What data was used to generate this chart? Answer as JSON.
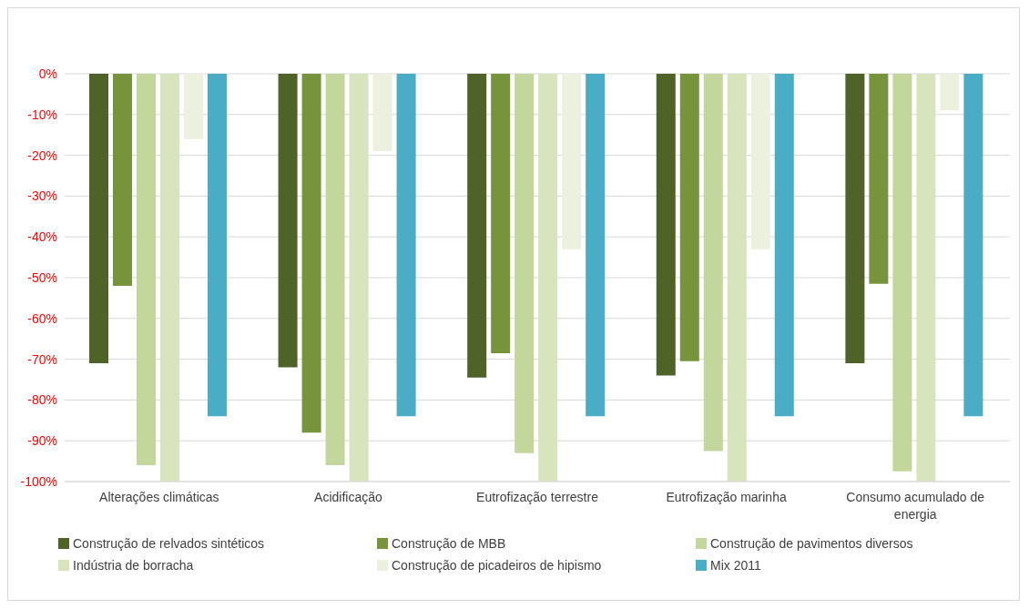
{
  "chart_data": {
    "type": "bar",
    "categories": [
      "Alterações climáticas",
      "Acidificação",
      "Eutrofização terrestre",
      "Eutrofização marinha",
      "Consumo acumulado de energia"
    ],
    "series": [
      {
        "name": "Construção de relvados sintéticos",
        "color": "#4f6228",
        "values": [
          -71,
          -72,
          -74.5,
          -74,
          -71
        ]
      },
      {
        "name": "Construção de MBB",
        "color": "#77933c",
        "values": [
          -52,
          -88,
          -68.5,
          -70.5,
          -51.5
        ]
      },
      {
        "name": "Construção de pavimentos diversos",
        "color": "#c3d69b",
        "values": [
          -96,
          -96,
          -93,
          -92.5,
          -97.5
        ]
      },
      {
        "name": "Indústria de borracha",
        "color": "#d7e4bd",
        "values": [
          -100,
          -100,
          -100,
          -100,
          -100
        ]
      },
      {
        "name": "Construção de picadeiros de hipismo",
        "color": "#ebf1de",
        "values": [
          -16,
          -19,
          -43,
          -43,
          -9
        ]
      },
      {
        "name": "Mix 2011",
        "color": "#4bacc6",
        "values": [
          -84,
          -84,
          -84,
          -84,
          -84
        ]
      }
    ],
    "ylim": [
      -100,
      0
    ],
    "yticks": [
      {
        "value": 0,
        "label": "0%"
      },
      {
        "value": -10,
        "label": "-10%"
      },
      {
        "value": -20,
        "label": "-20%"
      },
      {
        "value": -30,
        "label": "-30%"
      },
      {
        "value": -40,
        "label": "-40%"
      },
      {
        "value": -50,
        "label": "-50%"
      },
      {
        "value": -60,
        "label": "-60%"
      },
      {
        "value": -70,
        "label": "-70%"
      },
      {
        "value": -80,
        "label": "-80%"
      },
      {
        "value": -90,
        "label": "-90%"
      },
      {
        "value": -100,
        "label": "-100%"
      }
    ],
    "grid": "y",
    "legend": "bottom"
  }
}
